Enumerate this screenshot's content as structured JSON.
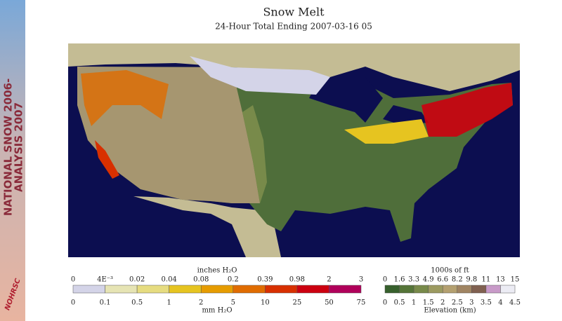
{
  "sidebar": {
    "line1": "NATIONAL SNOW 2006-",
    "line2": "ANALYSIS 2007",
    "logo": "NOHRSC"
  },
  "title": "Snow Melt",
  "subtitle": "24-Hour Total Ending 2007-03-16 05",
  "melt_legend": {
    "top_title": "inches H₂O",
    "top_labels": [
      "0",
      "4E⁻³",
      "0.02",
      "0.04",
      "0.08",
      "0.2",
      "0.39",
      "0.98",
      "2",
      "3"
    ],
    "bottom_labels": [
      "0",
      "0.1",
      "0.5",
      "1",
      "2",
      "5",
      "10",
      "25",
      "50",
      "75"
    ],
    "bottom_title": "mm H₂O",
    "colors": [
      "#d4d4e8",
      "#e6e4b4",
      "#e6dc80",
      "#e6c420",
      "#e69c00",
      "#e06c00",
      "#d83000",
      "#cc0010",
      "#b0005a"
    ]
  },
  "elevation_legend": {
    "top_title": "1000s of ft",
    "top_labels": [
      "0",
      "1.6",
      "3.3",
      "4.9",
      "6.6",
      "8.2",
      "9.8",
      "11",
      "13",
      "15"
    ],
    "bottom_labels": [
      "0",
      "0.5",
      "1",
      "1.5",
      "2",
      "2.5",
      "3",
      "3.5",
      "4",
      "4.5"
    ],
    "bottom_title": "Elevation (km)",
    "colors": [
      "#37602c",
      "#557538",
      "#788a4a",
      "#9c9a60",
      "#b4a070",
      "#a08462",
      "#806050",
      "#c89ac8",
      "#ececf4"
    ]
  }
}
